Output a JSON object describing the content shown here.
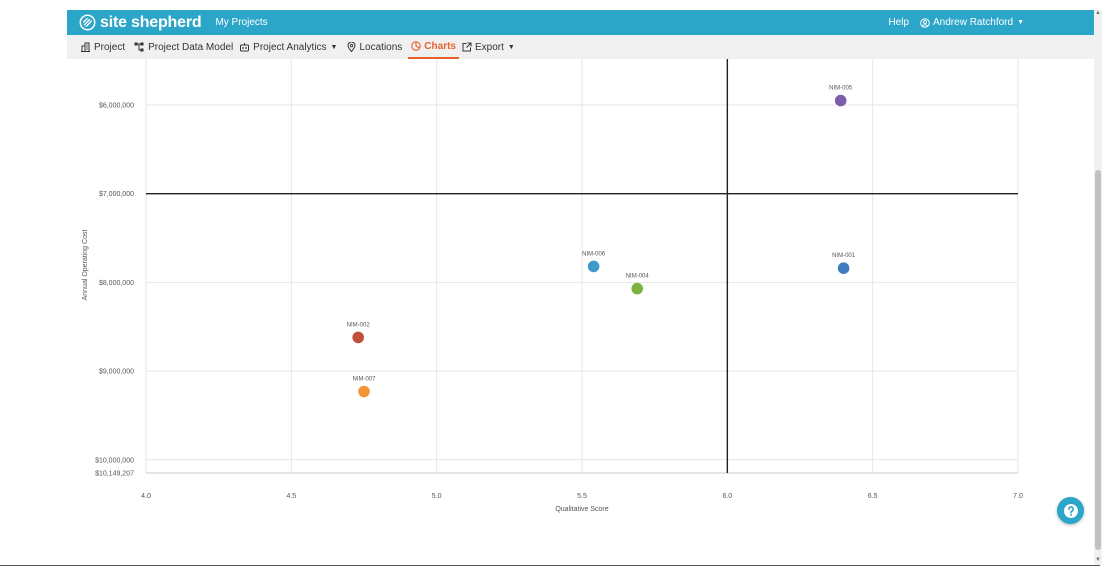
{
  "app": {
    "name": "site shepherd",
    "nav_link": "My Projects"
  },
  "header": {
    "help": "Help",
    "user": "Andrew Ratchford"
  },
  "subnav": {
    "items": [
      {
        "label": "Project"
      },
      {
        "label": "Project Data Model"
      },
      {
        "label": "Project Analytics"
      },
      {
        "label": "Locations"
      },
      {
        "label": "Charts"
      },
      {
        "label": "Export"
      }
    ]
  },
  "colors": {
    "brand": "#2ca6c8",
    "active": "#e8602c"
  },
  "chart_data": {
    "type": "scatter",
    "xlabel": "Qualitative Score",
    "ylabel": "Annual Operating Cost",
    "xlim": [
      4.0,
      7.0
    ],
    "ylim_inverted": true,
    "x_ticks": [
      "4.0",
      "4.5",
      "5.0",
      "5.5",
      "6.0",
      "6.5",
      "7.0"
    ],
    "y_ticks": [
      "$6,000,000",
      "$7,000,000",
      "$8,000,000",
      "$9,000,000",
      "$10,000,000",
      "$10,149,207"
    ],
    "y_tick_values": [
      6000000,
      7000000,
      8000000,
      9000000,
      10000000,
      10149207
    ],
    "quadrant_x": 6.0,
    "quadrant_y": 7000000,
    "points": [
      {
        "label": "NIM-005",
        "x": 6.39,
        "y": 5950000,
        "color": "#7b5ea7"
      },
      {
        "label": "NIM-006",
        "x": 5.54,
        "y": 7820000,
        "color": "#3d9ac9"
      },
      {
        "label": "NIM-004",
        "x": 5.69,
        "y": 8070000,
        "color": "#7cb342"
      },
      {
        "label": "NIM-001",
        "x": 6.4,
        "y": 7840000,
        "color": "#3f7bbf"
      },
      {
        "label": "NIM-002",
        "x": 4.73,
        "y": 8620000,
        "color": "#c0503a"
      },
      {
        "label": "NIM-007",
        "x": 4.75,
        "y": 9230000,
        "color": "#f39638"
      }
    ]
  }
}
